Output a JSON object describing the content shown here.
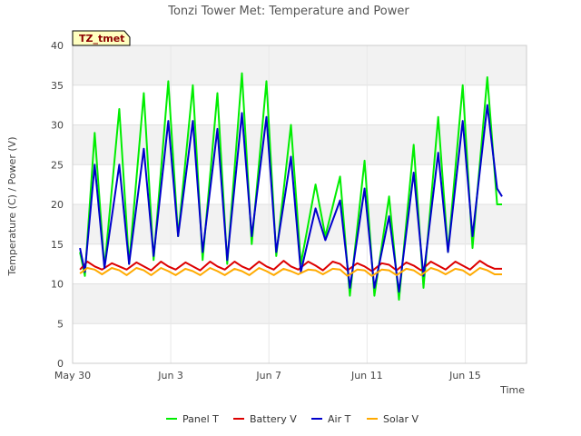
{
  "chart_data": {
    "type": "line",
    "title": "Tonzi Tower Met: Temperature and Power",
    "badge": "TZ_tmet",
    "xlabel": "Time",
    "ylabel": "Temperature (C) / Power (V)",
    "ylim": [
      0,
      40
    ],
    "xlim": [
      0,
      18.5
    ],
    "yticks": [
      0,
      5,
      10,
      15,
      20,
      25,
      30,
      35,
      40
    ],
    "xticks": [
      {
        "value": 0,
        "label": "May 30"
      },
      {
        "value": 4,
        "label": "Jun 3"
      },
      {
        "value": 8,
        "label": "Jun 7"
      },
      {
        "value": 12,
        "label": "Jun 11"
      },
      {
        "value": 16,
        "label": "Jun 15"
      }
    ],
    "grid": true,
    "legend_position": "bottom",
    "series": [
      {
        "name": "Panel T",
        "color": "#00ee00",
        "x": [
          0.3,
          0.5,
          0.9,
          1.3,
          1.9,
          2.3,
          2.9,
          3.3,
          3.9,
          4.3,
          4.9,
          5.3,
          5.9,
          6.3,
          6.9,
          7.3,
          7.9,
          8.3,
          8.9,
          9.3,
          9.9,
          10.3,
          10.9,
          11.3,
          11.9,
          12.3,
          12.9,
          13.3,
          13.9,
          14.3,
          14.9,
          15.3,
          15.9,
          16.3,
          16.9,
          17.3,
          17.5
        ],
        "values": [
          14,
          11,
          29,
          12,
          32,
          12.5,
          34,
          13,
          35.5,
          16,
          35,
          13,
          34,
          12.5,
          36.5,
          15,
          35.5,
          13.5,
          30,
          12.5,
          22.5,
          16,
          23.5,
          8.5,
          25.5,
          8.5,
          21,
          8,
          27.5,
          9.5,
          31,
          14,
          35,
          14.5,
          36,
          20,
          20
        ]
      },
      {
        "name": "Battery V",
        "color": "#dd0000",
        "x": [
          0.3,
          0.6,
          0.9,
          1.2,
          1.6,
          1.9,
          2.2,
          2.6,
          2.9,
          3.2,
          3.6,
          3.9,
          4.2,
          4.6,
          4.9,
          5.2,
          5.6,
          5.9,
          6.2,
          6.6,
          6.9,
          7.2,
          7.6,
          7.9,
          8.2,
          8.6,
          8.9,
          9.2,
          9.6,
          9.9,
          10.2,
          10.6,
          10.9,
          11.2,
          11.6,
          11.9,
          12.2,
          12.6,
          12.9,
          13.2,
          13.6,
          13.9,
          14.2,
          14.6,
          14.9,
          15.2,
          15.6,
          15.9,
          16.2,
          16.6,
          16.9,
          17.2,
          17.5
        ],
        "values": [
          11.8,
          12.8,
          12.2,
          11.8,
          12.6,
          12.2,
          11.8,
          12.7,
          12.2,
          11.7,
          12.8,
          12.2,
          11.8,
          12.7,
          12.2,
          11.7,
          12.8,
          12.2,
          11.8,
          12.8,
          12.2,
          11.8,
          12.8,
          12.2,
          11.8,
          12.9,
          12.2,
          11.8,
          12.8,
          12.3,
          11.7,
          12.8,
          12.5,
          11.7,
          12.6,
          12.2,
          11.6,
          12.6,
          12.4,
          11.7,
          12.7,
          12.3,
          11.7,
          12.8,
          12.3,
          11.8,
          12.8,
          12.3,
          11.8,
          12.9,
          12.3,
          11.9,
          11.9
        ]
      },
      {
        "name": "Air T",
        "color": "#0000cc",
        "x": [
          0.3,
          0.5,
          0.9,
          1.3,
          1.9,
          2.3,
          2.9,
          3.3,
          3.9,
          4.3,
          4.9,
          5.3,
          5.9,
          6.3,
          6.9,
          7.3,
          7.9,
          8.3,
          8.9,
          9.3,
          9.9,
          10.3,
          10.9,
          11.3,
          11.9,
          12.3,
          12.9,
          13.3,
          13.9,
          14.3,
          14.9,
          15.3,
          15.9,
          16.3,
          16.9,
          17.3,
          17.5
        ],
        "values": [
          14.5,
          11.5,
          25,
          12,
          25,
          12.5,
          27,
          13.5,
          30.5,
          16,
          30.5,
          14,
          29.5,
          13,
          31.5,
          16,
          31,
          14,
          26,
          11.5,
          19.5,
          15.5,
          20.5,
          9.5,
          22,
          9.5,
          18.5,
          9,
          24,
          11,
          26.5,
          14,
          30.5,
          16,
          32.5,
          22,
          21
        ]
      },
      {
        "name": "Solar V",
        "color": "#ffaa00",
        "x": [
          0.3,
          0.6,
          0.9,
          1.2,
          1.6,
          1.9,
          2.2,
          2.6,
          2.9,
          3.2,
          3.6,
          3.9,
          4.2,
          4.6,
          4.9,
          5.2,
          5.6,
          5.9,
          6.2,
          6.6,
          6.9,
          7.2,
          7.6,
          7.9,
          8.2,
          8.6,
          8.9,
          9.2,
          9.6,
          9.9,
          10.2,
          10.6,
          10.9,
          11.2,
          11.6,
          11.9,
          12.2,
          12.6,
          12.9,
          13.2,
          13.6,
          13.9,
          14.2,
          14.6,
          14.9,
          15.2,
          15.6,
          15.9,
          16.2,
          16.6,
          16.9,
          17.2,
          17.5
        ],
        "values": [
          11.3,
          12.0,
          11.8,
          11.2,
          12.0,
          11.7,
          11.1,
          12.0,
          11.7,
          11.1,
          12.0,
          11.6,
          11.1,
          11.9,
          11.6,
          11.1,
          12.0,
          11.6,
          11.1,
          11.9,
          11.6,
          11.1,
          12.0,
          11.6,
          11.1,
          11.9,
          11.6,
          11.2,
          11.8,
          11.7,
          11.2,
          11.9,
          11.8,
          11.0,
          11.8,
          11.7,
          11.0,
          11.8,
          11.7,
          11.1,
          11.9,
          11.7,
          11.1,
          12.0,
          11.7,
          11.2,
          11.9,
          11.7,
          11.1,
          12.0,
          11.7,
          11.2,
          11.2
        ]
      }
    ]
  }
}
